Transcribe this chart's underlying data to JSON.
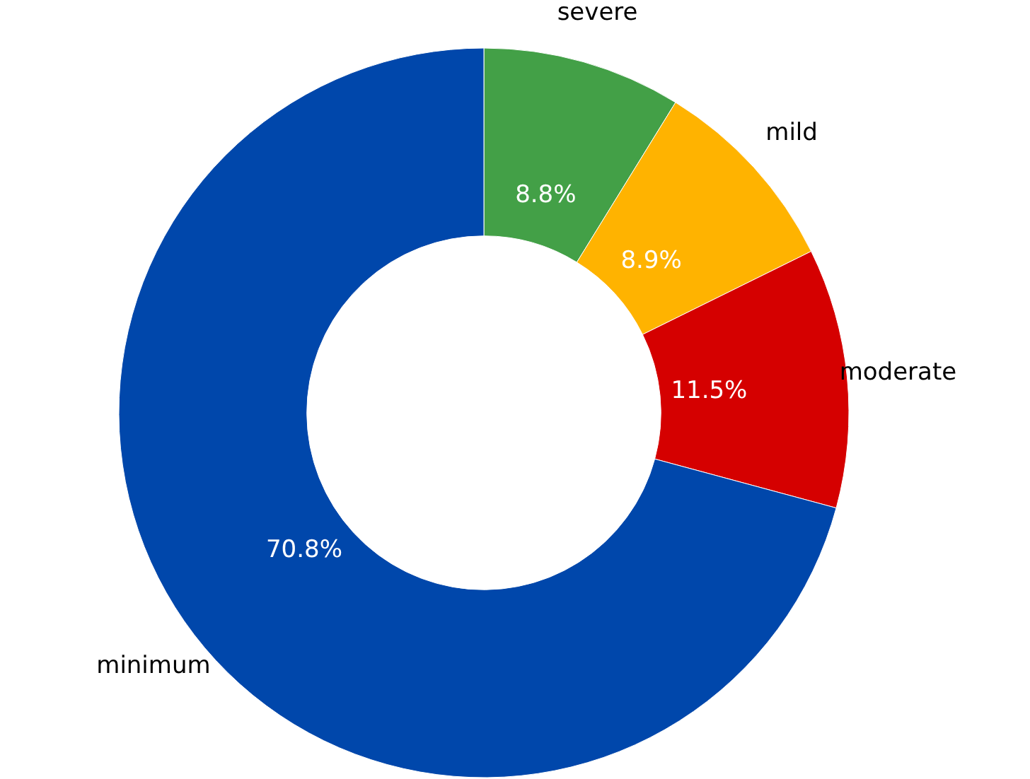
{
  "chart_data": {
    "type": "donut",
    "categories": [
      "severe",
      "mild",
      "moderate",
      "minimum"
    ],
    "values": [
      8.8,
      8.9,
      11.5,
      70.8
    ],
    "colors": [
      "#43a047",
      "#ffb300",
      "#d50000",
      "#0047ab"
    ],
    "value_labels": [
      "8.8%",
      "8.9%",
      "11.5%",
      "70.8%"
    ]
  }
}
